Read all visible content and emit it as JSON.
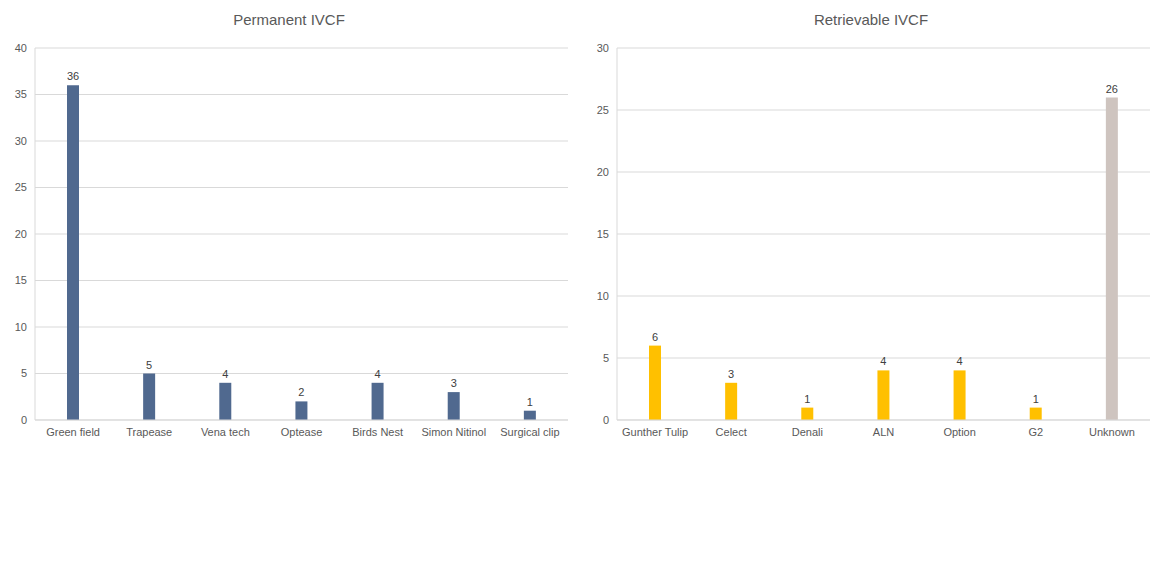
{
  "chart_data": [
    {
      "type": "bar",
      "title": "Permanent IVCF",
      "categories": [
        "Green field",
        "Trapease",
        "Vena tech",
        "Optease",
        "Birds Nest",
        "Simon Nitinol",
        "Surgical clip"
      ],
      "values": [
        36,
        5,
        4,
        2,
        4,
        3,
        1
      ],
      "color": "#50698f",
      "ylim": [
        0,
        40
      ],
      "yticks": [
        0,
        5,
        10,
        15,
        20,
        25,
        30,
        35,
        40
      ],
      "grid": true,
      "data_labels": true
    },
    {
      "type": "bar",
      "title": "Retrievable IVCF",
      "categories": [
        "Gunther Tulip",
        "Celect",
        "Denali",
        "ALN",
        "Option",
        "G2",
        "Unknown"
      ],
      "values": [
        6,
        3,
        1,
        4,
        4,
        1,
        26
      ],
      "colors": [
        "#ffc000",
        "#ffc000",
        "#ffc000",
        "#ffc000",
        "#ffc000",
        "#ffc000",
        "#cec4bf"
      ],
      "ylim": [
        0,
        30
      ],
      "yticks": [
        0,
        5,
        10,
        15,
        20,
        25,
        30
      ],
      "grid": true,
      "data_labels": true
    }
  ]
}
